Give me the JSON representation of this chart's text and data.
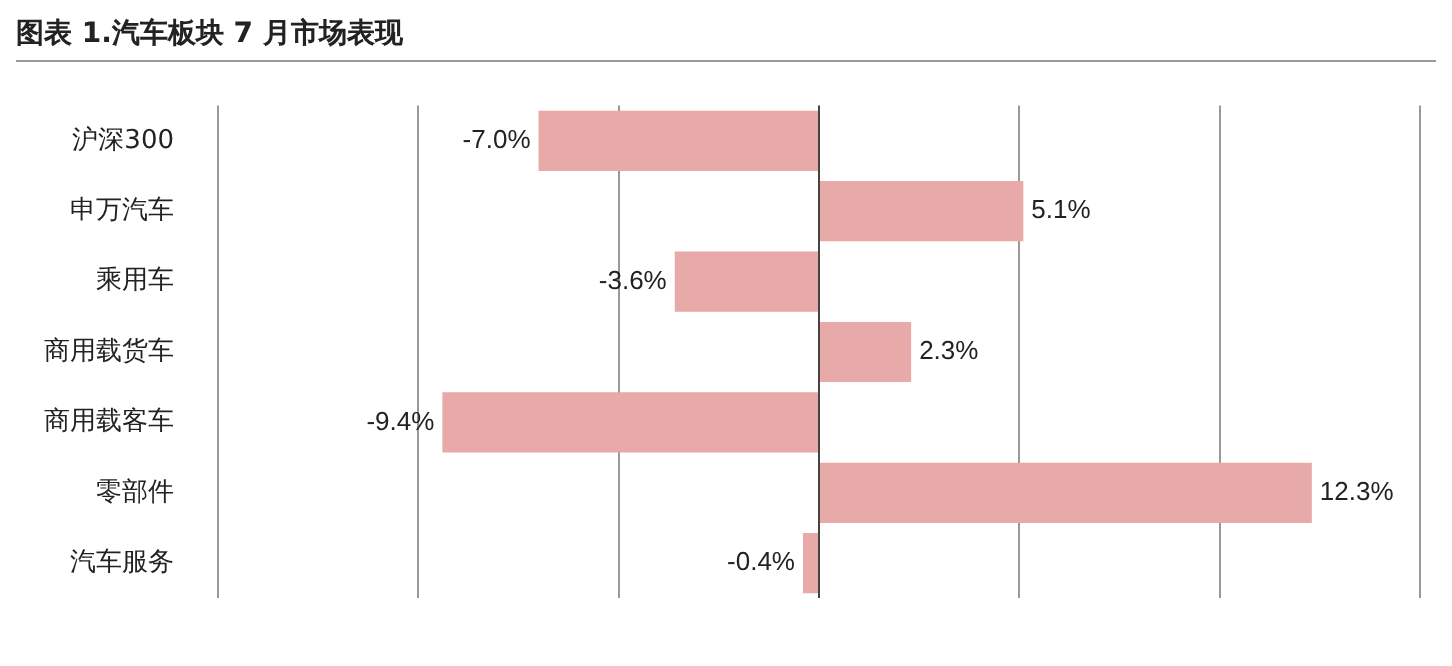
{
  "chart_data": {
    "type": "bar",
    "orientation": "horizontal",
    "title": "图表 1.汽车板块 7 月市场表现",
    "categories": [
      "沪深300",
      "申万汽车",
      "乘用车",
      "商用载货车",
      "商用载客车",
      "零部件",
      "汽车服务"
    ],
    "values": [
      -7.0,
      5.1,
      -3.6,
      2.3,
      -9.4,
      12.3,
      -0.4
    ],
    "value_labels": [
      "-7.0%",
      "5.1%",
      "-3.6%",
      "2.3%",
      "-9.4%",
      "12.3%",
      "-0.4%"
    ],
    "color": "#e8a9a9",
    "xlim": [
      -15,
      15
    ],
    "xticks": [
      {
        "value": -15,
        "label": null
      },
      {
        "value": -10,
        "label": null
      },
      {
        "value": -5,
        "label": null
      },
      {
        "value": 0,
        "label": null
      },
      {
        "value": 5,
        "label": null
      },
      {
        "value": 10,
        "label": null
      },
      {
        "value": 15,
        "label": null
      }
    ],
    "grid": "x",
    "tick_labels": "y",
    "legend": false
  }
}
